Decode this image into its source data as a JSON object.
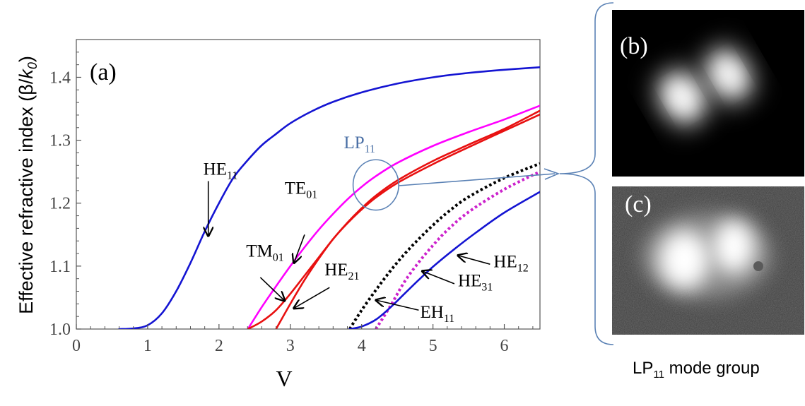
{
  "chart_data": {
    "type": "line",
    "panel_label": "(a)",
    "xlabel": "V",
    "ylabel_parts": [
      "Effective refractive index (β/",
      "k",
      "0",
      ")"
    ],
    "xlim": [
      0,
      6.5
    ],
    "ylim": [
      1.0,
      1.46
    ],
    "x_ticks": [
      0,
      1,
      2,
      3,
      4,
      5,
      6
    ],
    "y_ticks": [
      1.0,
      1.1,
      1.2,
      1.3,
      1.4
    ],
    "x_tick_labels": [
      "0",
      "1",
      "2",
      "3",
      "4",
      "5",
      "6"
    ],
    "y_tick_labels": [
      "1.0",
      "1.1",
      "1.2",
      "1.3",
      "1.4"
    ],
    "series": [
      {
        "name": "HE11",
        "color": "#1414d2",
        "style": "solid",
        "x": [
          0.6,
          0.8,
          1.0,
          1.2,
          1.4,
          1.6,
          1.8,
          2.0,
          2.2,
          2.4,
          2.6,
          2.8,
          3.0,
          3.3,
          3.6,
          4.0,
          4.5,
          5.0,
          5.5,
          6.0,
          6.5
        ],
        "y": [
          1.0,
          1.001,
          1.006,
          1.025,
          1.06,
          1.105,
          1.155,
          1.2,
          1.24,
          1.268,
          1.292,
          1.31,
          1.327,
          1.346,
          1.361,
          1.376,
          1.39,
          1.4,
          1.407,
          1.412,
          1.416
        ]
      },
      {
        "name": "TE01",
        "color": "#ff00ff",
        "style": "solid",
        "x": [
          2.405,
          2.6,
          2.8,
          3.0,
          3.2,
          3.4,
          3.6,
          3.8,
          4.0,
          4.2,
          4.5,
          5.0,
          5.5,
          6.0,
          6.5
        ],
        "y": [
          1.0,
          1.035,
          1.068,
          1.1,
          1.13,
          1.158,
          1.183,
          1.206,
          1.226,
          1.243,
          1.264,
          1.291,
          1.313,
          1.333,
          1.355
        ]
      },
      {
        "name": "TM01",
        "color": "#e81010",
        "style": "solid",
        "x": [
          2.405,
          2.6,
          2.8,
          3.0,
          3.2,
          3.4,
          3.6,
          3.8,
          4.0,
          4.2,
          4.5,
          5.0,
          5.5,
          6.0,
          6.5
        ],
        "y": [
          1.0,
          1.012,
          1.03,
          1.056,
          1.085,
          1.114,
          1.143,
          1.169,
          1.192,
          1.212,
          1.236,
          1.267,
          1.293,
          1.318,
          1.347
        ]
      },
      {
        "name": "HE21",
        "color": "#e81010",
        "style": "solid",
        "x": [
          2.8,
          3.0,
          3.2,
          3.4,
          3.6,
          3.8,
          4.0,
          4.2,
          4.5,
          5.0,
          5.5,
          6.0,
          6.5
        ],
        "y": [
          1.0,
          1.04,
          1.078,
          1.112,
          1.143,
          1.168,
          1.19,
          1.209,
          1.232,
          1.262,
          1.289,
          1.315,
          1.341
        ]
      },
      {
        "name": "EH11",
        "color": "#000000",
        "style": "dotted",
        "x": [
          3.832,
          4.0,
          4.2,
          4.4,
          4.6,
          4.8,
          5.0,
          5.2,
          5.5,
          6.0,
          6.5
        ],
        "y": [
          1.0,
          1.03,
          1.062,
          1.092,
          1.119,
          1.143,
          1.165,
          1.185,
          1.21,
          1.24,
          1.263
        ]
      },
      {
        "name": "HE31",
        "color": "#cc22cc",
        "style": "dotted",
        "x": [
          4.2,
          4.4,
          4.6,
          4.8,
          5.0,
          5.2,
          5.5,
          6.0,
          6.5
        ],
        "y": [
          1.0,
          1.036,
          1.075,
          1.106,
          1.133,
          1.157,
          1.186,
          1.222,
          1.25
        ]
      },
      {
        "name": "HE12",
        "color": "#1414d2",
        "style": "solid",
        "x": [
          3.832,
          4.0,
          4.2,
          4.4,
          4.6,
          4.8,
          5.0,
          5.3,
          5.6,
          6.0,
          6.5
        ],
        "y": [
          1.0,
          1.004,
          1.015,
          1.034,
          1.056,
          1.078,
          1.099,
          1.127,
          1.153,
          1.185,
          1.218
        ]
      }
    ],
    "annotations": [
      {
        "base": "HE",
        "sub": "11",
        "x": 1.78,
        "y": 1.245,
        "arrow_from": [
          1.85,
          1.235
        ],
        "arrow_to": [
          1.85,
          1.148
        ]
      },
      {
        "base": "TE",
        "sub": "01",
        "x": 2.92,
        "y": 1.215,
        "arrow_from": [
          3.2,
          1.15
        ],
        "arrow_to": [
          3.05,
          1.105
        ]
      },
      {
        "base": "TM",
        "sub": "01",
        "x": 2.38,
        "y": 1.115,
        "arrow_from": [
          2.58,
          1.082
        ],
        "arrow_to": [
          2.92,
          1.045
        ]
      },
      {
        "base": "HE",
        "sub": "21",
        "x": 3.48,
        "y": 1.085,
        "arrow_from": [
          3.55,
          1.066
        ],
        "arrow_to": [
          3.05,
          1.033
        ]
      },
      {
        "base": "EH",
        "sub": "11",
        "x": 4.82,
        "y": 1.018,
        "arrow_from": [
          4.8,
          1.03
        ],
        "arrow_to": [
          4.2,
          1.046
        ]
      },
      {
        "base": "HE",
        "sub": "31",
        "x": 5.35,
        "y": 1.068,
        "arrow_from": [
          5.3,
          1.072
        ],
        "arrow_to": [
          4.85,
          1.092
        ]
      },
      {
        "base": "HE",
        "sub": "12",
        "x": 5.85,
        "y": 1.098,
        "arrow_from": [
          5.8,
          1.103
        ],
        "arrow_to": [
          5.35,
          1.117
        ]
      }
    ],
    "lp_group": {
      "base": "LP",
      "sub": "11",
      "label_x": 3.75,
      "label_y": 1.287,
      "circle_x": 4.2,
      "circle_y": 1.229,
      "circle_rx": 0.32,
      "circle_ry": 0.04
    }
  },
  "side_panels": {
    "b_label": "(b)",
    "c_label": "(c)",
    "caption_base": "LP",
    "caption_sub": "11",
    "caption_rest": " mode group"
  },
  "colors": {
    "axis": "#555555",
    "connector": "#5b82b5",
    "bracket": "#5b82b5",
    "lp_label": "#4a6fa5"
  }
}
